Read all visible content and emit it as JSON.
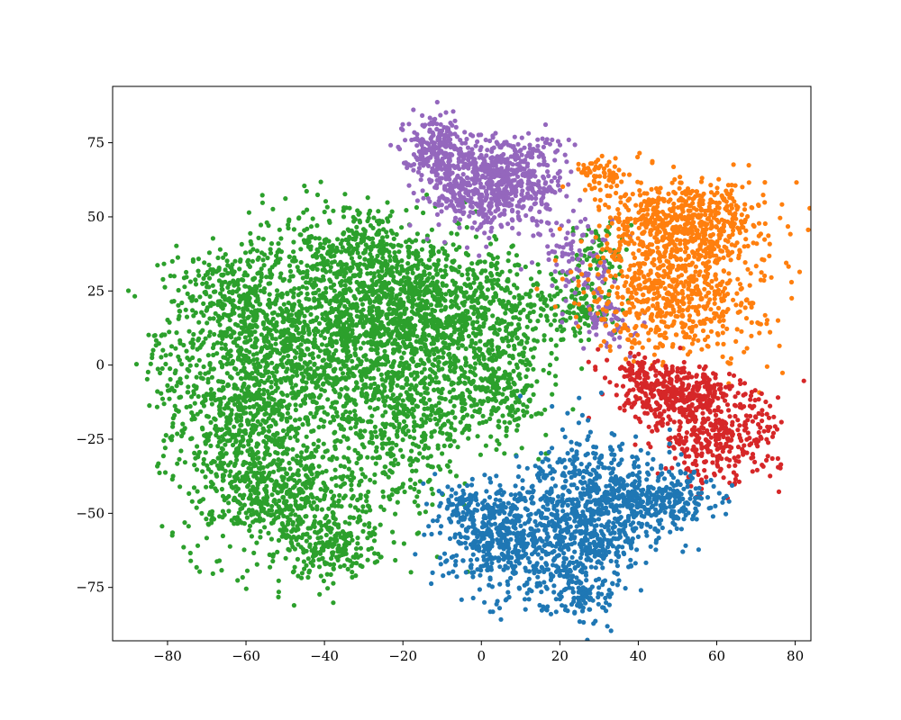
{
  "chart_data": {
    "type": "scatter",
    "title": "",
    "xlabel": "",
    "ylabel": "",
    "xlim": [
      -94,
      84
    ],
    "ylim": [
      -93,
      94
    ],
    "xticks": [
      -80,
      -60,
      -40,
      -20,
      0,
      20,
      40,
      60,
      80
    ],
    "yticks": [
      -75,
      -50,
      -25,
      0,
      25,
      50,
      75
    ],
    "xtick_labels": [
      "−80",
      "−60",
      "−40",
      "−20",
      "0",
      "20",
      "40",
      "60",
      "80"
    ],
    "ytick_labels": [
      "−75",
      "−50",
      "−25",
      "0",
      "25",
      "50",
      "75"
    ],
    "grid": false,
    "legend": "none",
    "series": [
      {
        "color": "#2ca02c",
        "clusters": [
          {
            "cx": -60,
            "cy": -15,
            "sx": 9,
            "sy": 22,
            "n": 900
          },
          {
            "cx": -42,
            "cy": 10,
            "sx": 12,
            "sy": 18,
            "n": 900
          },
          {
            "cx": -20,
            "cy": 20,
            "sx": 12,
            "sy": 12,
            "n": 800
          },
          {
            "cx": -20,
            "cy": -15,
            "sx": 10,
            "sy": 16,
            "n": 600
          },
          {
            "cx": -48,
            "cy": -45,
            "sx": 10,
            "sy": 10,
            "n": 450
          },
          {
            "cx": -38,
            "cy": -62,
            "sx": 6,
            "sy": 5,
            "n": 180
          },
          {
            "cx": 0,
            "cy": 15,
            "sx": 10,
            "sy": 12,
            "n": 450
          },
          {
            "cx": 5,
            "cy": -8,
            "sx": 6,
            "sy": 8,
            "n": 220
          },
          {
            "cx": -80,
            "cy": -2,
            "sx": 3,
            "sy": 8,
            "n": 50
          },
          {
            "cx": -65,
            "cy": 25,
            "sx": 8,
            "sy": 8,
            "n": 220
          },
          {
            "cx": -30,
            "cy": 40,
            "sx": 8,
            "sy": 8,
            "n": 220
          },
          {
            "cx": 25,
            "cy": 20,
            "sx": 5,
            "sy": 6,
            "n": 120
          },
          {
            "cx": 30,
            "cy": 38,
            "sx": 3,
            "sy": 5,
            "n": 60
          }
        ]
      },
      {
        "color": "#9467bd",
        "clusters": [
          {
            "cx": -12,
            "cy": 74,
            "sx": 4,
            "sy": 5,
            "n": 220
          },
          {
            "cx": 5,
            "cy": 62,
            "sx": 8,
            "sy": 8,
            "n": 600
          },
          {
            "cx": -5,
            "cy": 58,
            "sx": 6,
            "sy": 6,
            "n": 120
          },
          {
            "cx": 25,
            "cy": 35,
            "sx": 5,
            "sy": 8,
            "n": 90
          },
          {
            "cx": 32,
            "cy": 15,
            "sx": 3,
            "sy": 5,
            "n": 60
          }
        ]
      },
      {
        "color": "#ff7f0e",
        "clusters": [
          {
            "cx": 52,
            "cy": 48,
            "sx": 10,
            "sy": 7,
            "n": 600
          },
          {
            "cx": 50,
            "cy": 25,
            "sx": 11,
            "sy": 11,
            "n": 650
          },
          {
            "cx": 30,
            "cy": 65,
            "sx": 3,
            "sy": 3,
            "n": 60
          }
        ]
      },
      {
        "color": "#d62728",
        "clusters": [
          {
            "cx": 50,
            "cy": -10,
            "sx": 7,
            "sy": 5,
            "n": 350
          },
          {
            "cx": 60,
            "cy": -25,
            "sx": 8,
            "sy": 8,
            "n": 350
          },
          {
            "cx": 40,
            "cy": -2,
            "sx": 4,
            "sy": 3,
            "n": 60
          }
        ]
      },
      {
        "color": "#1f77b4",
        "clusters": [
          {
            "cx": 25,
            "cy": -55,
            "sx": 7,
            "sy": 14,
            "n": 650
          },
          {
            "cx": 5,
            "cy": -58,
            "sx": 7,
            "sy": 9,
            "n": 500
          },
          {
            "cx": 38,
            "cy": -45,
            "sx": 7,
            "sy": 9,
            "n": 320
          },
          {
            "cx": 50,
            "cy": -45,
            "sx": 5,
            "sy": 4,
            "n": 140
          },
          {
            "cx": -5,
            "cy": -47,
            "sx": 3,
            "sy": 3,
            "n": 60
          },
          {
            "cx": 25,
            "cy": -78,
            "sx": 3,
            "sy": 3,
            "n": 50
          }
        ]
      }
    ]
  }
}
